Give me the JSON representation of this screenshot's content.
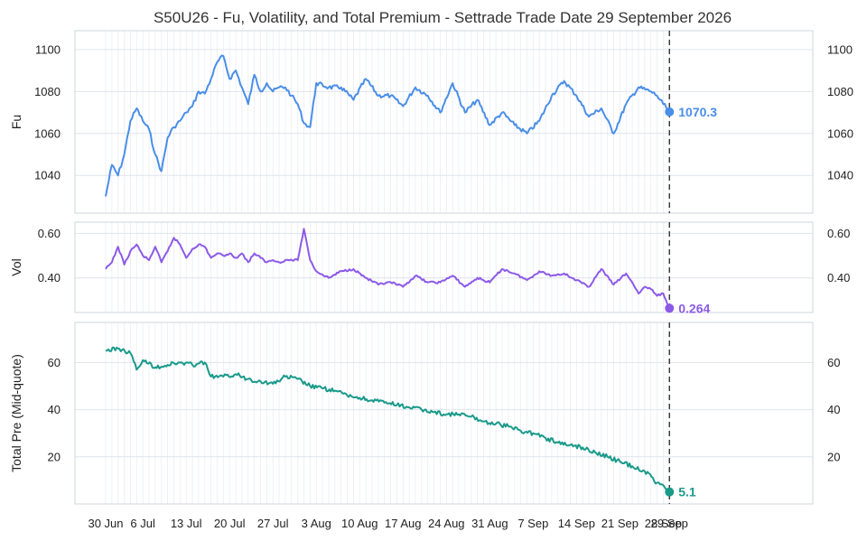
{
  "chart_data": {
    "type": "line",
    "title": "S50U26 - Fu, Volatility, and Total Premium - Settrade Trade Date 29 September 2026",
    "x_tick_labels": [
      "30 Jun",
      "6 Jul",
      "13 Jul",
      "20 Jul",
      "27 Jul",
      "3 Aug",
      "10 Aug",
      "17 Aug",
      "24 Aug",
      "31 Aug",
      "7 Sep",
      "14 Sep",
      "21 Sep",
      "28 Sep",
      "29 Sep"
    ],
    "x_range": [
      "2026-06-29",
      "2026-09-30"
    ],
    "marker_date": "2026-09-29",
    "grid": true,
    "panels": [
      {
        "name": "Fu",
        "ylabel": "Fu",
        "color": "#4a8ee8",
        "ylim": [
          1022,
          1109
        ],
        "yticks": [
          1040,
          1060,
          1080,
          1100
        ],
        "end_label": "1070.3",
        "end_value": 1070.3,
        "points": [
          [
            "2026-06-30",
            1030
          ],
          [
            "2026-07-01",
            1045
          ],
          [
            "2026-07-02",
            1040
          ],
          [
            "2026-07-03",
            1050
          ],
          [
            "2026-07-04",
            1066
          ],
          [
            "2026-07-05",
            1072
          ],
          [
            "2026-07-06",
            1066
          ],
          [
            "2026-07-07",
            1062
          ],
          [
            "2026-07-08",
            1050
          ],
          [
            "2026-07-09",
            1042
          ],
          [
            "2026-07-10",
            1058
          ],
          [
            "2026-07-11",
            1063
          ],
          [
            "2026-07-12",
            1066
          ],
          [
            "2026-07-13",
            1070
          ],
          [
            "2026-07-14",
            1073
          ],
          [
            "2026-07-15",
            1080
          ],
          [
            "2026-07-16",
            1079
          ],
          [
            "2026-07-17",
            1086
          ],
          [
            "2026-07-18",
            1094
          ],
          [
            "2026-07-19",
            1097
          ],
          [
            "2026-07-20",
            1086
          ],
          [
            "2026-07-21",
            1090
          ],
          [
            "2026-07-22",
            1082
          ],
          [
            "2026-07-23",
            1074
          ],
          [
            "2026-07-24",
            1088
          ],
          [
            "2026-07-25",
            1080
          ],
          [
            "2026-07-26",
            1084
          ],
          [
            "2026-07-27",
            1080
          ],
          [
            "2026-07-28",
            1082
          ],
          [
            "2026-07-29",
            1082
          ],
          [
            "2026-07-30",
            1078
          ],
          [
            "2026-07-31",
            1074
          ],
          [
            "2026-08-01",
            1065
          ],
          [
            "2026-08-02",
            1063
          ],
          [
            "2026-08-03",
            1084
          ],
          [
            "2026-08-05",
            1082
          ],
          [
            "2026-08-07",
            1082
          ],
          [
            "2026-08-09",
            1076
          ],
          [
            "2026-08-11",
            1086
          ],
          [
            "2026-08-13",
            1078
          ],
          [
            "2026-08-15",
            1078
          ],
          [
            "2026-08-17",
            1073
          ],
          [
            "2026-08-19",
            1082
          ],
          [
            "2026-08-21",
            1078
          ],
          [
            "2026-08-23",
            1070
          ],
          [
            "2026-08-25",
            1084
          ],
          [
            "2026-08-27",
            1070
          ],
          [
            "2026-08-29",
            1076
          ],
          [
            "2026-08-31",
            1064
          ],
          [
            "2026-09-02",
            1070
          ],
          [
            "2026-09-04",
            1064
          ],
          [
            "2026-09-06",
            1060
          ],
          [
            "2026-09-08",
            1066
          ],
          [
            "2026-09-10",
            1078
          ],
          [
            "2026-09-12",
            1085
          ],
          [
            "2026-09-14",
            1078
          ],
          [
            "2026-09-16",
            1068
          ],
          [
            "2026-09-18",
            1072
          ],
          [
            "2026-09-20",
            1060
          ],
          [
            "2026-09-22",
            1074
          ],
          [
            "2026-09-24",
            1082
          ],
          [
            "2026-09-26",
            1080
          ],
          [
            "2026-09-27",
            1078
          ],
          [
            "2026-09-28",
            1074
          ],
          [
            "2026-09-29",
            1070.3
          ]
        ]
      },
      {
        "name": "Vol",
        "ylabel": "Vol",
        "color": "#8c5ae8",
        "ylim": [
          0.245,
          0.65
        ],
        "yticks": [
          0.4,
          0.6
        ],
        "ytick_labels": [
          "0.40",
          "0.60"
        ],
        "end_label": "0.264",
        "end_value": 0.264,
        "points": [
          [
            "2026-06-30",
            0.44
          ],
          [
            "2026-07-01",
            0.47
          ],
          [
            "2026-07-02",
            0.54
          ],
          [
            "2026-07-03",
            0.46
          ],
          [
            "2026-07-04",
            0.52
          ],
          [
            "2026-07-05",
            0.55
          ],
          [
            "2026-07-06",
            0.5
          ],
          [
            "2026-07-07",
            0.48
          ],
          [
            "2026-07-08",
            0.54
          ],
          [
            "2026-07-09",
            0.47
          ],
          [
            "2026-07-10",
            0.52
          ],
          [
            "2026-07-11",
            0.58
          ],
          [
            "2026-07-12",
            0.55
          ],
          [
            "2026-07-13",
            0.49
          ],
          [
            "2026-07-14",
            0.53
          ],
          [
            "2026-07-15",
            0.55
          ],
          [
            "2026-07-16",
            0.54
          ],
          [
            "2026-07-17",
            0.49
          ],
          [
            "2026-07-18",
            0.51
          ],
          [
            "2026-07-19",
            0.5
          ],
          [
            "2026-07-20",
            0.51
          ],
          [
            "2026-07-21",
            0.49
          ],
          [
            "2026-07-22",
            0.51
          ],
          [
            "2026-07-23",
            0.47
          ],
          [
            "2026-07-24",
            0.51
          ],
          [
            "2026-07-25",
            0.49
          ],
          [
            "2026-07-26",
            0.47
          ],
          [
            "2026-07-27",
            0.48
          ],
          [
            "2026-07-28",
            0.47
          ],
          [
            "2026-07-29",
            0.48
          ],
          [
            "2026-07-31",
            0.48
          ],
          [
            "2026-08-01",
            0.62
          ],
          [
            "2026-08-02",
            0.48
          ],
          [
            "2026-08-03",
            0.43
          ],
          [
            "2026-08-05",
            0.4
          ],
          [
            "2026-08-07",
            0.43
          ],
          [
            "2026-08-09",
            0.44
          ],
          [
            "2026-08-11",
            0.4
          ],
          [
            "2026-08-13",
            0.37
          ],
          [
            "2026-08-15",
            0.38
          ],
          [
            "2026-08-17",
            0.36
          ],
          [
            "2026-08-19",
            0.41
          ],
          [
            "2026-08-21",
            0.38
          ],
          [
            "2026-08-23",
            0.38
          ],
          [
            "2026-08-25",
            0.41
          ],
          [
            "2026-08-27",
            0.36
          ],
          [
            "2026-08-29",
            0.4
          ],
          [
            "2026-08-31",
            0.38
          ],
          [
            "2026-09-02",
            0.44
          ],
          [
            "2026-09-04",
            0.42
          ],
          [
            "2026-09-06",
            0.39
          ],
          [
            "2026-09-08",
            0.43
          ],
          [
            "2026-09-10",
            0.41
          ],
          [
            "2026-09-12",
            0.42
          ],
          [
            "2026-09-14",
            0.39
          ],
          [
            "2026-09-16",
            0.36
          ],
          [
            "2026-09-18",
            0.44
          ],
          [
            "2026-09-20",
            0.37
          ],
          [
            "2026-09-22",
            0.42
          ],
          [
            "2026-09-23",
            0.38
          ],
          [
            "2026-09-24",
            0.33
          ],
          [
            "2026-09-25",
            0.36
          ],
          [
            "2026-09-26",
            0.35
          ],
          [
            "2026-09-27",
            0.32
          ],
          [
            "2026-09-28",
            0.33
          ],
          [
            "2026-09-29",
            0.264
          ]
        ]
      },
      {
        "name": "Total Premium",
        "ylabel": "Total Pre (Mid-quote)",
        "color": "#1a9a8a",
        "ylim": [
          0,
          77
        ],
        "yticks": [
          20,
          40,
          60
        ],
        "end_label": "5.1",
        "end_value": 5.1,
        "points": [
          [
            "2026-06-30",
            65
          ],
          [
            "2026-07-02",
            66
          ],
          [
            "2026-07-04",
            64
          ],
          [
            "2026-07-05",
            57
          ],
          [
            "2026-07-06",
            61
          ],
          [
            "2026-07-08",
            58
          ],
          [
            "2026-07-10",
            59
          ],
          [
            "2026-07-12",
            60
          ],
          [
            "2026-07-14",
            59
          ],
          [
            "2026-07-16",
            60
          ],
          [
            "2026-07-17",
            54
          ],
          [
            "2026-07-19",
            54
          ],
          [
            "2026-07-21",
            55
          ],
          [
            "2026-07-23",
            53
          ],
          [
            "2026-07-25",
            52
          ],
          [
            "2026-07-27",
            51
          ],
          [
            "2026-07-29",
            54
          ],
          [
            "2026-07-31",
            53
          ],
          [
            "2026-08-02",
            50
          ],
          [
            "2026-08-04",
            49
          ],
          [
            "2026-08-06",
            48
          ],
          [
            "2026-08-08",
            46
          ],
          [
            "2026-08-10",
            45
          ],
          [
            "2026-08-12",
            44
          ],
          [
            "2026-08-14",
            43
          ],
          [
            "2026-08-16",
            42
          ],
          [
            "2026-08-18",
            41
          ],
          [
            "2026-08-20",
            40
          ],
          [
            "2026-08-22",
            39
          ],
          [
            "2026-08-24",
            38
          ],
          [
            "2026-08-26",
            38
          ],
          [
            "2026-08-28",
            37
          ],
          [
            "2026-08-30",
            35
          ],
          [
            "2026-09-01",
            34
          ],
          [
            "2026-09-03",
            33
          ],
          [
            "2026-09-05",
            31
          ],
          [
            "2026-09-07",
            30
          ],
          [
            "2026-09-09",
            28
          ],
          [
            "2026-09-11",
            26
          ],
          [
            "2026-09-13",
            25
          ],
          [
            "2026-09-15",
            24
          ],
          [
            "2026-09-17",
            22
          ],
          [
            "2026-09-19",
            20
          ],
          [
            "2026-09-21",
            18
          ],
          [
            "2026-09-23",
            16
          ],
          [
            "2026-09-25",
            14
          ],
          [
            "2026-09-27",
            9
          ],
          [
            "2026-09-28",
            8
          ],
          [
            "2026-09-29",
            5.1
          ]
        ]
      }
    ]
  }
}
